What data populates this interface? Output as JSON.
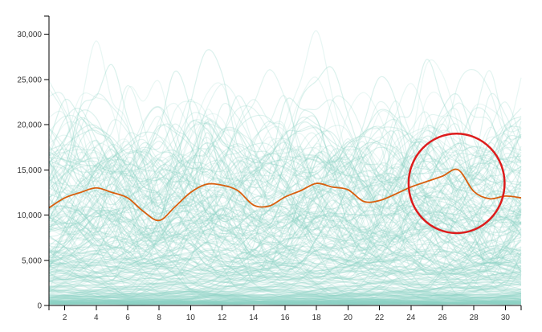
{
  "chart_data": {
    "type": "line",
    "title": "",
    "xlabel": "",
    "ylabel": "",
    "x_range": [
      1,
      31
    ],
    "x_ticks": [
      2,
      4,
      6,
      8,
      10,
      12,
      14,
      16,
      18,
      20,
      22,
      24,
      26,
      28,
      30
    ],
    "y_range": [
      0,
      32000
    ],
    "y_ticks": [
      {
        "value": 0,
        "label": "0"
      },
      {
        "value": 5000,
        "label": "5,000"
      },
      {
        "value": 10000,
        "label": "10,000"
      },
      {
        "value": 15000,
        "label": "15,000"
      },
      {
        "value": 20000,
        "label": "20,000"
      },
      {
        "value": 25000,
        "label": "25,000"
      },
      {
        "value": 30000,
        "label": "30,000"
      }
    ],
    "grid": false,
    "legend": "none",
    "background_series_count": 300,
    "background_series_color": "#8fd3c6",
    "series": [
      {
        "color": "#d95f0e",
        "x": [
          1,
          2,
          3,
          4,
          5,
          6,
          7,
          8,
          9,
          10,
          11,
          12,
          13,
          14,
          15,
          16,
          17,
          18,
          19,
          20,
          21,
          22,
          23,
          24,
          25,
          26,
          27,
          28,
          29,
          30,
          31
        ],
        "values": [
          10800,
          11900,
          12500,
          13000,
          12500,
          11900,
          10400,
          9400,
          10900,
          12500,
          13400,
          13300,
          12700,
          11100,
          11000,
          12000,
          12700,
          13500,
          13100,
          12800,
          11500,
          11600,
          12300,
          13100,
          13700,
          14300,
          15000,
          12600,
          11800,
          12100,
          11900
        ]
      }
    ],
    "annotations": [
      {
        "shape": "circle",
        "color": "#dd1c1c",
        "center_x": 26.9,
        "center_y": 13500,
        "radius_x_units": 3.05,
        "radius_y_units": 5500
      }
    ]
  }
}
